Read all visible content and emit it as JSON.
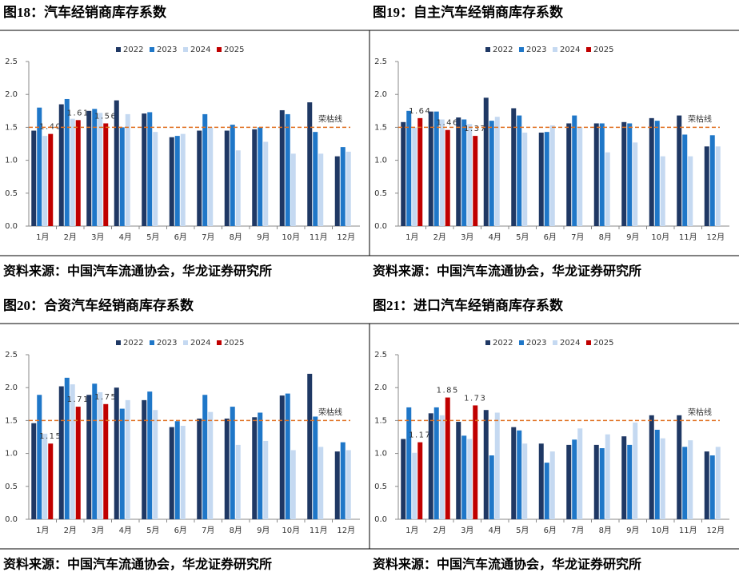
{
  "chart_data": [
    {
      "type": "bar",
      "title": "图18：汽车经销商库存系数",
      "source": "资料来源：中国汽车流通协会，华龙证券研究所",
      "categories": [
        "1月",
        "2月",
        "3月",
        "4月",
        "5月",
        "6月",
        "7月",
        "8月",
        "9月",
        "10月",
        "11月",
        "12月"
      ],
      "series": [
        {
          "name": "2022",
          "color": "#1f3864",
          "values": [
            1.45,
            1.85,
            1.75,
            1.91,
            1.71,
            1.35,
            1.45,
            1.45,
            1.47,
            1.76,
            1.88,
            1.06
          ]
        },
        {
          "name": "2023",
          "color": "#1f77c8",
          "values": [
            1.8,
            1.93,
            1.78,
            1.5,
            1.73,
            1.37,
            1.7,
            1.54,
            1.5,
            1.7,
            1.43,
            1.2
          ]
        },
        {
          "name": "2024",
          "color": "#c5d9f1",
          "values": [
            1.37,
            1.63,
            1.72,
            1.7,
            1.43,
            1.4,
            1.5,
            1.15,
            1.28,
            1.1,
            1.1,
            1.13
          ]
        },
        {
          "name": "2025",
          "color": "#c00000",
          "values": [
            1.4,
            1.61,
            1.56,
            null,
            null,
            null,
            null,
            null,
            null,
            null,
            null,
            null
          ],
          "value_labels": [
            "1.40",
            "1.61",
            "1.56",
            null,
            null,
            null,
            null,
            null,
            null,
            null,
            null,
            null
          ]
        }
      ],
      "ylim": [
        0,
        2.5
      ],
      "yticks": [
        {
          "value": 0,
          "label": "0.0"
        },
        0.5,
        {
          "value": 1,
          "label": "1.0"
        },
        1.5,
        {
          "value": 2,
          "label": "2.0"
        },
        2.5
      ],
      "reference": {
        "value": 1.5,
        "label": "荣枯线",
        "color": "#e07020"
      },
      "legend": "top",
      "grid": false
    },
    {
      "type": "bar",
      "title": "图19：自主汽车经销商库存系数",
      "source": "资料来源：中国汽车流通协会，华龙证券研究所",
      "categories": [
        "1月",
        "2月",
        "3月",
        "4月",
        "5月",
        "6月",
        "7月",
        "8月",
        "9月",
        "10月",
        "11月",
        "12月"
      ],
      "series": [
        {
          "name": "2022",
          "color": "#1f3864",
          "values": [
            1.58,
            1.74,
            1.65,
            1.95,
            1.79,
            1.42,
            1.56,
            1.56,
            1.58,
            1.64,
            1.68,
            1.21
          ]
        },
        {
          "name": "2023",
          "color": "#1f77c8",
          "values": [
            1.75,
            1.74,
            1.62,
            1.6,
            1.68,
            1.43,
            1.68,
            1.56,
            1.56,
            1.6,
            1.39,
            1.38
          ]
        },
        {
          "name": "2024",
          "color": "#c5d9f1",
          "values": [
            1.5,
            1.62,
            1.55,
            1.66,
            1.42,
            1.53,
            1.5,
            1.12,
            1.27,
            1.06,
            1.06,
            1.21
          ]
        },
        {
          "name": "2025",
          "color": "#c00000",
          "values": [
            1.64,
            1.46,
            1.37,
            null,
            null,
            null,
            null,
            null,
            null,
            null,
            null,
            null
          ],
          "value_labels": [
            "1.64",
            "1.46",
            "1.37",
            null,
            null,
            null,
            null,
            null,
            null,
            null,
            null,
            null
          ]
        }
      ],
      "ylim": [
        0,
        2.5
      ],
      "yticks": [
        {
          "value": 0,
          "label": "0.0"
        },
        0.5,
        {
          "value": 1,
          "label": "1.0"
        },
        1.5,
        {
          "value": 2,
          "label": "2.0"
        },
        2.5
      ],
      "reference": {
        "value": 1.5,
        "label": "荣枯线",
        "color": "#e07020"
      },
      "legend": "top",
      "grid": false
    },
    {
      "type": "bar",
      "title": "图20：合资汽车经销商库存系数",
      "source": "资料来源：中国汽车流通协会，华龙证券研究所",
      "categories": [
        "1月",
        "2月",
        "3月",
        "4月",
        "5月",
        "6月",
        "7月",
        "8月",
        "9月",
        "10月",
        "11月",
        "12月"
      ],
      "series": [
        {
          "name": "2022",
          "color": "#1f3864",
          "values": [
            1.46,
            2.02,
            1.89,
            2.0,
            1.81,
            1.4,
            1.53,
            1.53,
            1.55,
            1.88,
            2.21,
            1.03
          ]
        },
        {
          "name": "2023",
          "color": "#1f77c8",
          "values": [
            1.89,
            2.15,
            2.06,
            1.68,
            1.94,
            1.49,
            1.89,
            1.71,
            1.62,
            1.91,
            1.56,
            1.17
          ]
        },
        {
          "name": "2024",
          "color": "#c5d9f1",
          "values": [
            1.3,
            2.05,
            1.93,
            1.81,
            1.66,
            1.42,
            1.63,
            1.13,
            1.19,
            1.05,
            1.1,
            1.05
          ]
        },
        {
          "name": "2025",
          "color": "#c00000",
          "values": [
            1.15,
            1.71,
            1.75,
            null,
            null,
            null,
            null,
            null,
            null,
            null,
            null,
            null
          ],
          "value_labels": [
            "1.15",
            "1.71",
            "1.75",
            null,
            null,
            null,
            null,
            null,
            null,
            null,
            null,
            null
          ]
        }
      ],
      "ylim": [
        0,
        2.5
      ],
      "yticks": [
        {
          "value": 0,
          "label": "0.0"
        },
        0.5,
        {
          "value": 1,
          "label": "1.0"
        },
        1.5,
        {
          "value": 2,
          "label": "2.0"
        },
        2.5
      ],
      "reference": {
        "value": 1.5,
        "label": "荣枯线",
        "color": "#e07020"
      },
      "legend": "top",
      "grid": false
    },
    {
      "type": "bar",
      "title": "图21：进口汽车经销商库存系数",
      "source": "资料来源：中国汽车流通协会，华龙证券研究所",
      "categories": [
        "1月",
        "2月",
        "3月",
        "4月",
        "5月",
        "6月",
        "7月",
        "8月",
        "9月",
        "10月",
        "11月",
        "12月"
      ],
      "series": [
        {
          "name": "2022",
          "color": "#1f3864",
          "values": [
            1.22,
            1.61,
            1.48,
            1.66,
            1.4,
            1.15,
            1.13,
            1.13,
            1.26,
            1.58,
            1.58,
            1.03
          ]
        },
        {
          "name": "2023",
          "color": "#1f77c8",
          "values": [
            1.7,
            1.7,
            1.27,
            0.97,
            1.35,
            0.86,
            1.21,
            1.08,
            1.13,
            1.36,
            1.1,
            0.97
          ]
        },
        {
          "name": "2024",
          "color": "#c5d9f1",
          "values": [
            1.01,
            1.58,
            1.22,
            1.62,
            1.15,
            1.03,
            1.38,
            1.29,
            1.47,
            1.23,
            1.2,
            1.1
          ]
        },
        {
          "name": "2025",
          "color": "#c00000",
          "values": [
            1.17,
            1.85,
            1.73,
            null,
            null,
            null,
            null,
            null,
            null,
            null,
            null,
            null
          ],
          "value_labels": [
            "1.17",
            "1.85",
            "1.73",
            null,
            null,
            null,
            null,
            null,
            null,
            null,
            null,
            null
          ]
        }
      ],
      "ylim": [
        0,
        2.5
      ],
      "yticks": [
        {
          "value": 0,
          "label": "0.0"
        },
        0.5,
        {
          "value": 1,
          "label": "1.0"
        },
        1.5,
        {
          "value": 2,
          "label": "2.0"
        },
        2.5
      ],
      "reference": {
        "value": 1.5,
        "label": "荣枯线",
        "color": "#e07020"
      },
      "legend": "top",
      "grid": false
    }
  ]
}
